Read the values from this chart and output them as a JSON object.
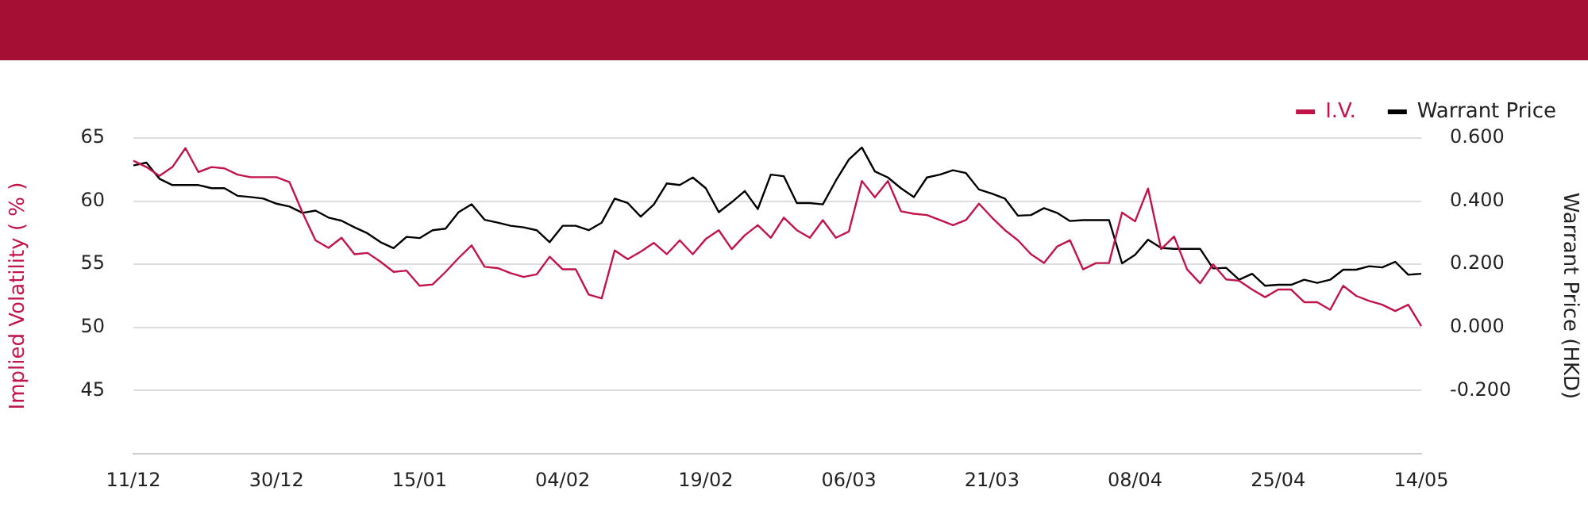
{
  "chart_data": {
    "type": "line",
    "categories": [
      "11/12",
      null,
      null,
      null,
      null,
      null,
      null,
      null,
      null,
      null,
      null,
      "30/12",
      null,
      null,
      null,
      null,
      null,
      null,
      null,
      null,
      null,
      null,
      "15/01",
      null,
      null,
      null,
      null,
      null,
      null,
      null,
      null,
      null,
      null,
      "04/02",
      null,
      null,
      null,
      null,
      null,
      null,
      null,
      null,
      null,
      null,
      "19/02",
      null,
      null,
      null,
      null,
      null,
      null,
      null,
      null,
      null,
      null,
      "06/03",
      null,
      null,
      null,
      null,
      null,
      null,
      null,
      null,
      null,
      null,
      "21/03",
      null,
      null,
      null,
      null,
      null,
      null,
      null,
      null,
      null,
      null,
      "08/04",
      null,
      null,
      null,
      null,
      null,
      null,
      null,
      null,
      null,
      null,
      "25/04",
      null,
      null,
      null,
      null,
      null,
      null,
      null,
      null,
      null,
      null,
      "14/05"
    ],
    "series": [
      {
        "name": "I.V.",
        "color": "#c0144a",
        "values": [
          63.2,
          62.7,
          62.0,
          62.7,
          64.2,
          62.3,
          62.7,
          62.6,
          62.1,
          61.9,
          61.9,
          61.9,
          61.5,
          59.1,
          56.9,
          56.3,
          57.1,
          55.8,
          55.9,
          55.2,
          54.4,
          54.5,
          53.3,
          53.4,
          54.4,
          55.5,
          56.5,
          54.8,
          54.7,
          54.3,
          54.0,
          54.2,
          55.6,
          54.6,
          54.6,
          52.6,
          52.3,
          56.1,
          55.4,
          56.0,
          56.7,
          55.8,
          56.9,
          55.8,
          57.0,
          57.7,
          56.2,
          57.3,
          58.1,
          57.1,
          58.7,
          57.7,
          57.1,
          58.5,
          57.1,
          57.6,
          61.6,
          60.3,
          61.6,
          59.2,
          59.0,
          58.9,
          58.5,
          58.1,
          58.5,
          59.8,
          58.7,
          57.7,
          56.9,
          55.8,
          55.1,
          56.4,
          56.9,
          54.6,
          55.1,
          55.1,
          59.1,
          58.4,
          61.0,
          56.2,
          57.2,
          54.6,
          53.5,
          55.0,
          53.8,
          53.7,
          53.0,
          52.4,
          53.0,
          53.0,
          52.0,
          52.0,
          51.4,
          53.3,
          52.5,
          52.1,
          51.8,
          51.3,
          51.8,
          50.1
        ]
      },
      {
        "name": "Warrant Price",
        "color": "#000000",
        "axis": "y2",
        "values": [
          0.513,
          0.522,
          0.471,
          0.451,
          0.451,
          0.451,
          0.441,
          0.441,
          0.417,
          0.413,
          0.408,
          0.392,
          0.383,
          0.363,
          0.37,
          0.348,
          0.338,
          0.317,
          0.298,
          0.27,
          0.251,
          0.287,
          0.283,
          0.308,
          0.313,
          0.365,
          0.39,
          0.341,
          0.332,
          0.322,
          0.317,
          0.308,
          0.27,
          0.322,
          0.322,
          0.308,
          0.332,
          0.408,
          0.394,
          0.351,
          0.389,
          0.456,
          0.451,
          0.475,
          0.441,
          0.365,
          0.397,
          0.432,
          0.375,
          0.484,
          0.479,
          0.394,
          0.394,
          0.39,
          0.465,
          0.532,
          0.57,
          0.494,
          0.475,
          0.441,
          0.413,
          0.475,
          0.484,
          0.498,
          0.489,
          0.437,
          0.424,
          0.408,
          0.354,
          0.356,
          0.378,
          0.363,
          0.337,
          0.34,
          0.34,
          0.34,
          0.203,
          0.23,
          0.278,
          0.252,
          0.249,
          0.249,
          0.249,
          0.187,
          0.189,
          0.151,
          0.17,
          0.132,
          0.135,
          0.135,
          0.151,
          0.141,
          0.151,
          0.183,
          0.183,
          0.194,
          0.19,
          0.208,
          0.167,
          0.17
        ]
      }
    ],
    "ylabel": "Implied Volatility ( % )",
    "y2label": "Warrant Price (HKD)",
    "ylim": [
      40,
      65
    ],
    "yticks": [
      45,
      50,
      55,
      60,
      65
    ],
    "y2lim": [
      -0.4,
      0.6
    ],
    "y2ticks": [
      {
        "value": -0.2,
        "label": "-0.200"
      },
      {
        "value": 0,
        "label": "0.000"
      },
      {
        "value": 0.2,
        "label": "0.200"
      },
      {
        "value": 0.4,
        "label": "0.400"
      },
      {
        "value": 0.6,
        "label": "0.600"
      }
    ],
    "grid": "y",
    "legend": "top right",
    "marker": "none",
    "line_style": "solid"
  }
}
